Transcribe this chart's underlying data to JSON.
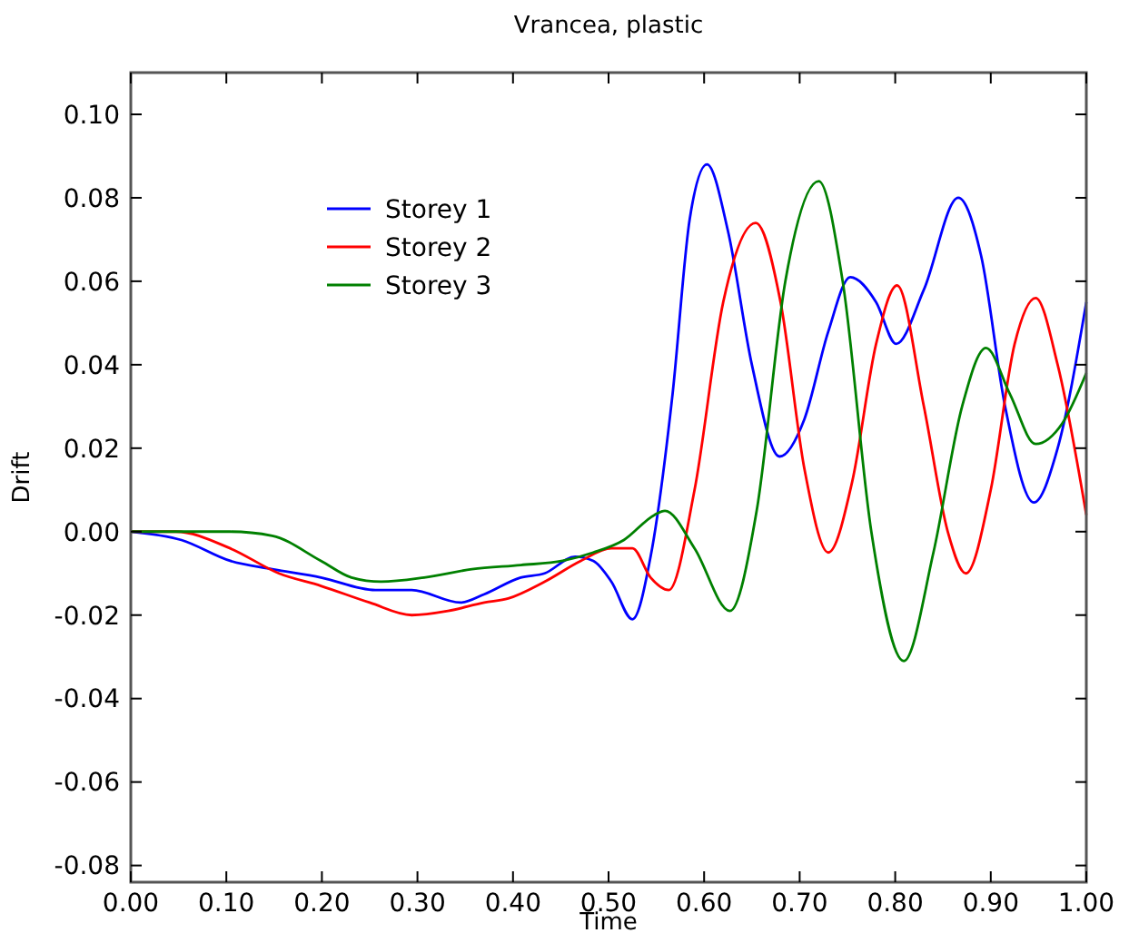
{
  "chart_data": {
    "type": "line",
    "title": "Vrancea, plastic",
    "xlabel": "Time",
    "ylabel": "Drift",
    "xlim": [
      0,
      1
    ],
    "ylim": [
      -0.084,
      0.11
    ],
    "xticks": [
      {
        "value": 0,
        "label": "0.00"
      },
      {
        "value": 0.1,
        "label": "0.10"
      },
      {
        "value": 0.2,
        "label": "0.20"
      },
      {
        "value": 0.3,
        "label": "0.30"
      },
      {
        "value": 0.4,
        "label": "0.40"
      },
      {
        "value": 0.5,
        "label": "0.50"
      },
      {
        "value": 0.6,
        "label": "0.60"
      },
      {
        "value": 0.7,
        "label": "0.70"
      },
      {
        "value": 0.8,
        "label": "0.80"
      },
      {
        "value": 0.9,
        "label": "0.90"
      },
      {
        "value": 1,
        "label": "1.00"
      }
    ],
    "yticks": [
      {
        "value": -0.08,
        "label": "-0.08"
      },
      {
        "value": -0.06,
        "label": "-0.06"
      },
      {
        "value": -0.04,
        "label": "-0.04"
      },
      {
        "value": -0.02,
        "label": "-0.02"
      },
      {
        "value": 0,
        "label": "0.00"
      },
      {
        "value": 0.02,
        "label": "0.02"
      },
      {
        "value": 0.04,
        "label": "0.04"
      },
      {
        "value": 0.06,
        "label": "0.06"
      },
      {
        "value": 0.08,
        "label": "0.08"
      },
      {
        "value": 0.1,
        "label": "0.10"
      }
    ],
    "grid": false,
    "legend": "top left",
    "marker": "none",
    "line_style": "solid",
    "series": [
      {
        "name": "Storey 1",
        "color": "#0000ff",
        "x": [
          0,
          0.053,
          0.104,
          0.148,
          0.199,
          0.256,
          0.294,
          0.345,
          0.37,
          0.408,
          0.433,
          0.465,
          0.484,
          0.503,
          0.525,
          0.544,
          0.567,
          0.585,
          0.603,
          0.625,
          0.65,
          0.679,
          0.705,
          0.73,
          0.753,
          0.78,
          0.801,
          0.83,
          0.866,
          0.89,
          0.915,
          0.945,
          0.97,
          1.0
        ],
        "values": [
          0,
          -0.002,
          -0.007,
          -0.009,
          -0.011,
          -0.014,
          -0.014,
          -0.017,
          -0.015,
          -0.011,
          -0.01,
          -0.006,
          -0.007,
          -0.012,
          -0.021,
          -0.006,
          0.033,
          0.075,
          0.088,
          0.072,
          0.04,
          0.018,
          0.027,
          0.048,
          0.061,
          0.055,
          0.045,
          0.058,
          0.08,
          0.066,
          0.03,
          0.007,
          0.02,
          0.055
        ]
      },
      {
        "name": "Storey 2",
        "color": "#ff0000",
        "x": [
          0,
          0.047,
          0.104,
          0.155,
          0.199,
          0.25,
          0.294,
          0.332,
          0.37,
          0.395,
          0.433,
          0.471,
          0.503,
          0.525,
          0.544,
          0.563,
          0.59,
          0.62,
          0.654,
          0.68,
          0.705,
          0.73,
          0.755,
          0.78,
          0.802,
          0.83,
          0.855,
          0.874,
          0.9,
          0.925,
          0.947,
          0.97,
          1.0
        ],
        "values": [
          0,
          0,
          -0.004,
          -0.01,
          -0.013,
          -0.017,
          -0.02,
          -0.019,
          -0.017,
          -0.016,
          -0.012,
          -0.007,
          -0.004,
          -0.004,
          -0.011,
          -0.014,
          0.01,
          0.055,
          0.074,
          0.055,
          0.015,
          -0.005,
          0.012,
          0.045,
          0.059,
          0.03,
          0.0,
          -0.01,
          0.01,
          0.045,
          0.056,
          0.04,
          0.004
        ]
      },
      {
        "name": "Storey 3",
        "color": "#008000",
        "x": [
          0,
          0.104,
          0.148,
          0.199,
          0.231,
          0.262,
          0.307,
          0.357,
          0.408,
          0.452,
          0.484,
          0.516,
          0.548,
          0.559,
          0.59,
          0.627,
          0.655,
          0.685,
          0.72,
          0.745,
          0.775,
          0.809,
          0.84,
          0.87,
          0.895,
          0.92,
          0.947,
          0.975,
          1.0
        ],
        "values": [
          0,
          0,
          -0.001,
          -0.007,
          -0.011,
          -0.012,
          -0.011,
          -0.009,
          -0.008,
          -0.007,
          -0.005,
          -0.002,
          0.004,
          0.005,
          -0.004,
          -0.019,
          0.005,
          0.06,
          0.084,
          0.06,
          0.0,
          -0.031,
          -0.005,
          0.03,
          0.044,
          0.033,
          0.021,
          0.026,
          0.038
        ]
      }
    ]
  }
}
